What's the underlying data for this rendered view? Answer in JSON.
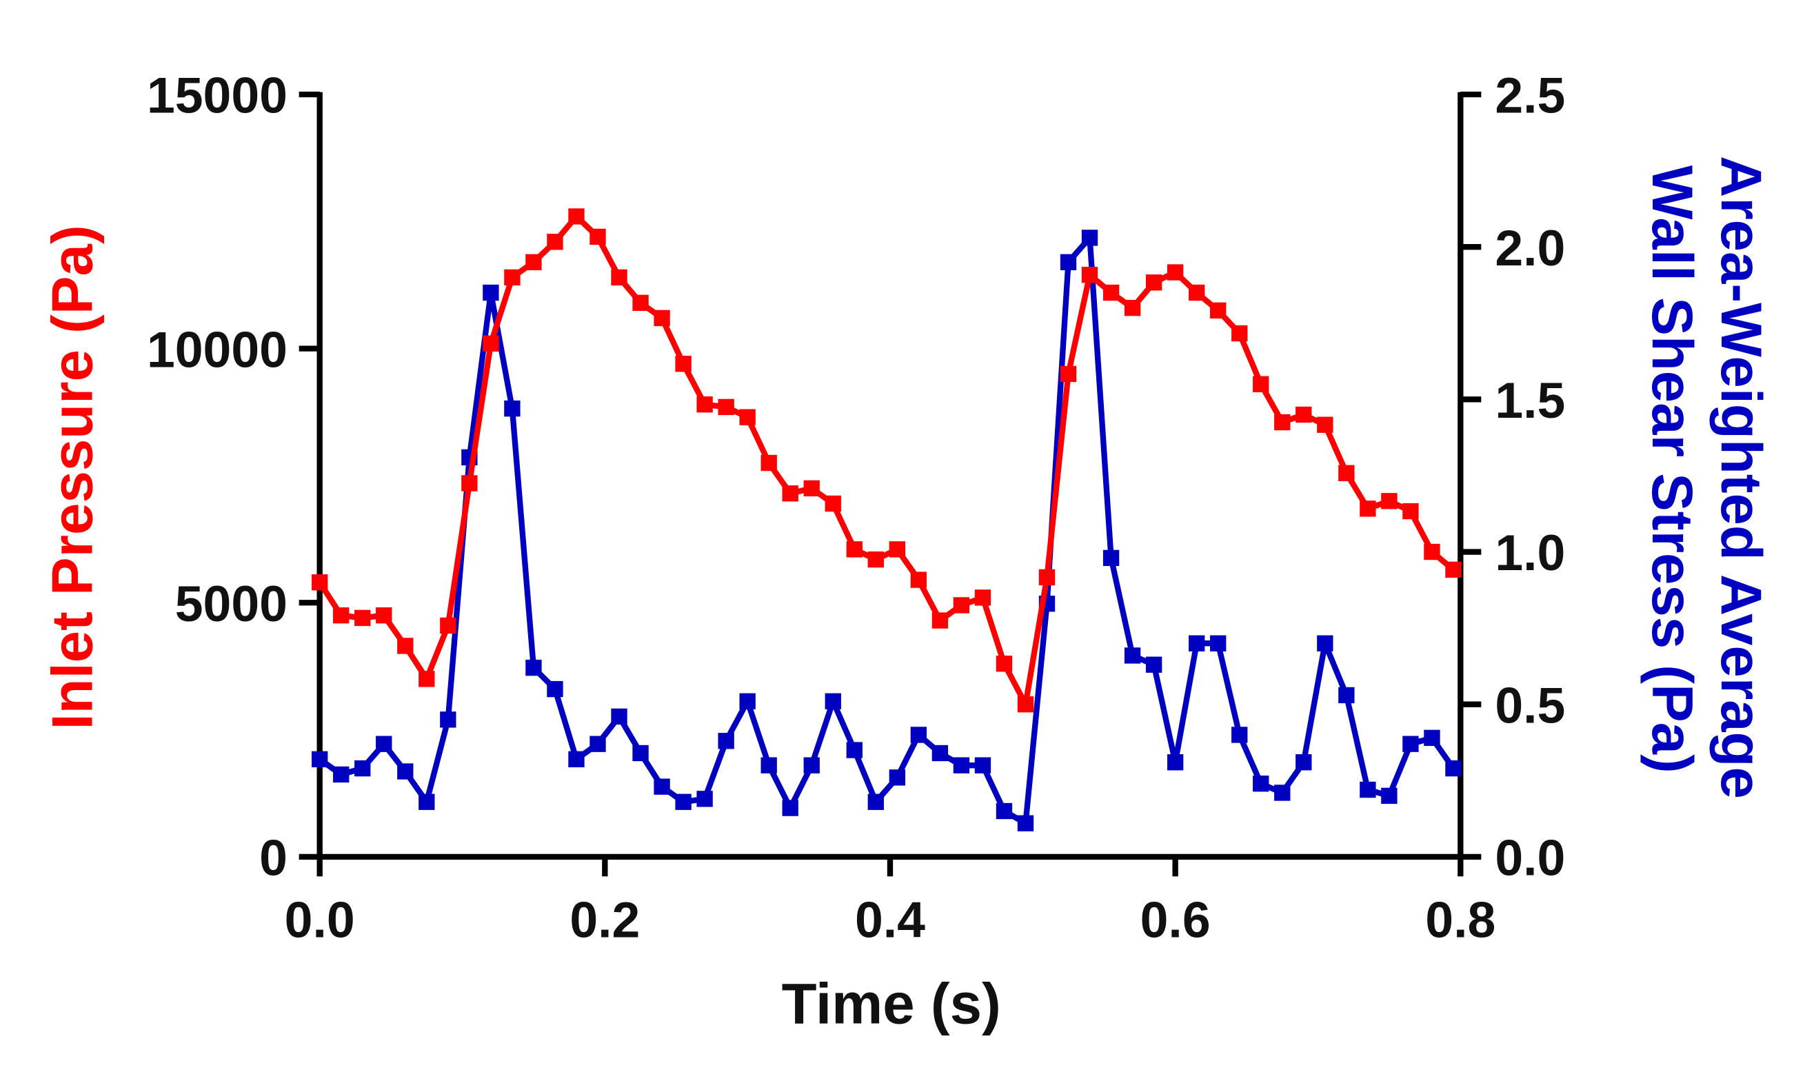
{
  "chart_data": {
    "type": "line",
    "title": "",
    "xlabel": "Time (s)",
    "ylabel_left": "Inlet Pressure (Pa)",
    "ylabel_right": [
      "Area-Weighted Average",
      "Wall Shear Stress (Pa)"
    ],
    "xlim": [
      0,
      0.8
    ],
    "ylim_left": [
      0,
      15000
    ],
    "ylim_right": [
      0,
      2.5
    ],
    "xticks": [
      "0.0",
      "0.2",
      "0.4",
      "0.6",
      "0.8"
    ],
    "yticks_left": [
      "0",
      "5000",
      "10000",
      "15000"
    ],
    "yticks_right": [
      "0.0",
      "0.5",
      "1.0",
      "1.5",
      "2.0",
      "2.5"
    ],
    "grid": false,
    "x_step": 0.015,
    "series": [
      {
        "name": "Inlet Pressure (Pa)",
        "axis": "left",
        "color": "#ff0000",
        "values": [
          5400,
          4750,
          4700,
          4750,
          4150,
          3500,
          4550,
          7350,
          10100,
          11400,
          11700,
          12100,
          12600,
          12200,
          11400,
          10900,
          10600,
          9700,
          8900,
          8850,
          8650,
          7750,
          7150,
          7250,
          6950,
          6050,
          5850,
          6050,
          5450,
          4650,
          4950,
          5100,
          3800,
          3000,
          5500,
          9500,
          11450,
          11100,
          10800,
          11300,
          11500,
          11100,
          10750,
          10300,
          9300,
          8550,
          8700,
          8500,
          7550,
          6850,
          7000,
          6800,
          6000,
          5650
        ]
      },
      {
        "name": "Area-Weighted Average Wall Shear Stress (Pa)",
        "axis": "right",
        "color": "#0000c0",
        "values": [
          0.32,
          0.27,
          0.29,
          0.37,
          0.28,
          0.18,
          0.45,
          1.31,
          1.85,
          1.47,
          0.62,
          0.55,
          0.32,
          0.37,
          0.46,
          0.34,
          0.23,
          0.18,
          0.19,
          0.38,
          0.51,
          0.3,
          0.16,
          0.3,
          0.51,
          0.35,
          0.18,
          0.26,
          0.4,
          0.34,
          0.3,
          0.3,
          0.15,
          0.11,
          0.83,
          1.95,
          2.03,
          0.98,
          0.66,
          0.63,
          0.31,
          0.7,
          0.7,
          0.4,
          0.24,
          0.21,
          0.31,
          0.7,
          0.53,
          0.22,
          0.2,
          0.37,
          0.39,
          0.29
        ]
      }
    ]
  }
}
